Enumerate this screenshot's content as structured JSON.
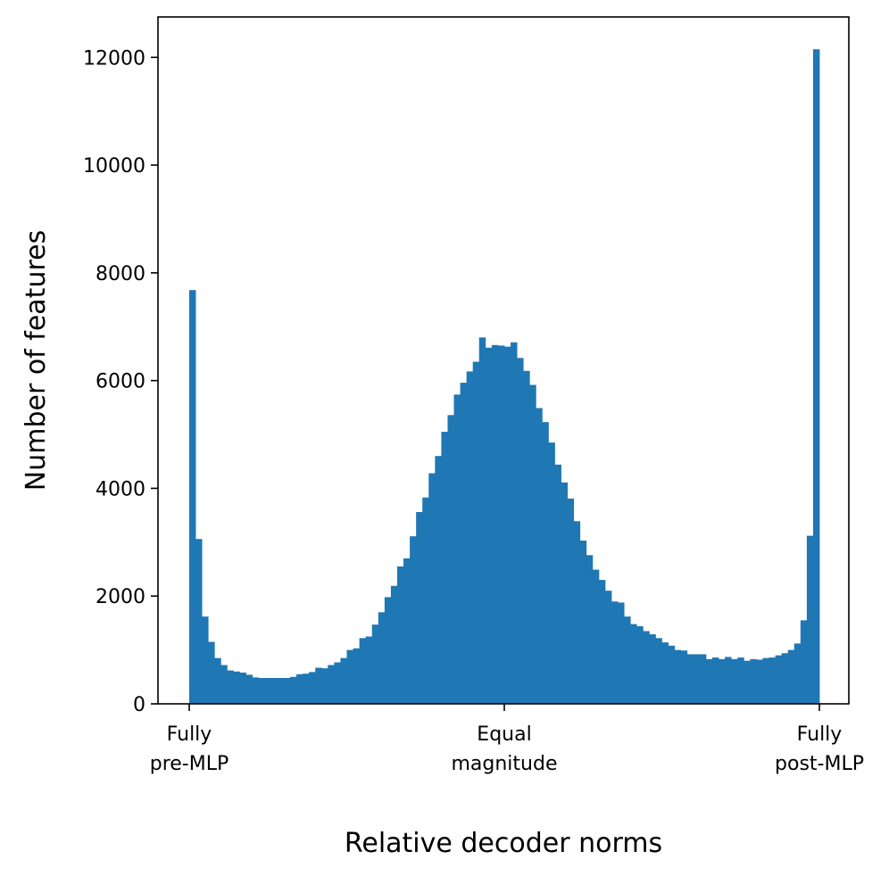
{
  "chart_data": {
    "type": "bar",
    "title": "",
    "xlabel": "Relative decoder norms",
    "ylabel": "Number of features",
    "ylim": [
      0,
      12750
    ],
    "yticks": [
      "0",
      "2000",
      "4000",
      "6000",
      "8000",
      "10000",
      "12000"
    ],
    "xtick_labels": [
      {
        "line1": "Fully",
        "line2": "pre-MLP"
      },
      {
        "line1": "Equal",
        "line2": "magnitude"
      },
      {
        "line1": "Fully",
        "line2": "post-MLP"
      }
    ],
    "bar_color": "#1f77b4",
    "grid": false,
    "values": [
      7680,
      3060,
      1620,
      1150,
      850,
      720,
      620,
      600,
      580,
      540,
      490,
      480,
      480,
      480,
      480,
      480,
      500,
      550,
      560,
      590,
      670,
      660,
      720,
      770,
      850,
      1000,
      1030,
      1220,
      1250,
      1470,
      1700,
      1980,
      2190,
      2550,
      2700,
      3110,
      3560,
      3830,
      4280,
      4600,
      5050,
      5360,
      5740,
      5960,
      6170,
      6350,
      6800,
      6610,
      6660,
      6650,
      6630,
      6710,
      6420,
      6180,
      5920,
      5490,
      5230,
      4850,
      4440,
      4110,
      3810,
      3390,
      3030,
      2760,
      2490,
      2300,
      2100,
      1900,
      1880,
      1620,
      1480,
      1440,
      1350,
      1290,
      1220,
      1140,
      1080,
      1000,
      990,
      920,
      920,
      920,
      830,
      860,
      830,
      870,
      830,
      860,
      800,
      830,
      820,
      850,
      860,
      900,
      940,
      1000,
      1120,
      1550,
      3120,
      12150
    ]
  }
}
